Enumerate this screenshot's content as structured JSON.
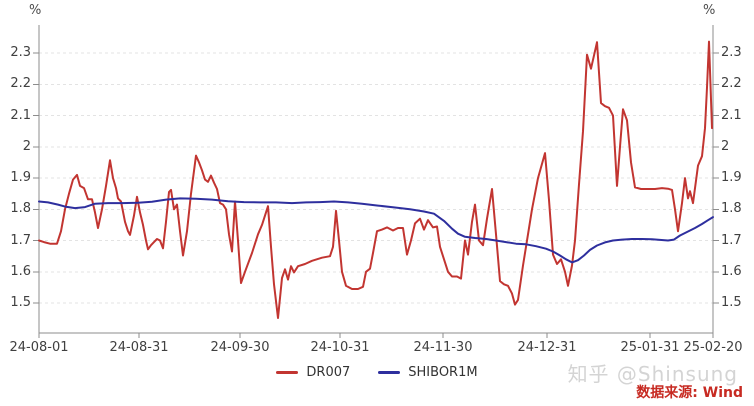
{
  "watermark": "知乎 @Shinsung",
  "source_note": "数据来源: Wind",
  "chart_data": {
    "type": "line",
    "title": "",
    "y_unit": "%",
    "grid": "horizontal dashed gridlines",
    "legend_position": "bottom-center",
    "y_tick_labels": [
      "2.3",
      "2.2",
      "2.1",
      "2",
      "1.9",
      "1.8",
      "1.7",
      "1.6",
      "1.5"
    ],
    "y_tick_values": [
      2.3,
      2.2,
      2.1,
      2.0,
      1.9,
      1.8,
      1.7,
      1.6,
      1.5
    ],
    "y_axis_range": [
      1.404,
      2.39
    ],
    "x_axis_type": "trading-day dates",
    "x_ticks": [
      {
        "label": "24-08-01",
        "f": 0.0
      },
      {
        "label": "24-08-31",
        "f": 0.1484
      },
      {
        "label": "24-09-30",
        "f": 0.2982
      },
      {
        "label": "24-10-31",
        "f": 0.4466
      },
      {
        "label": "24-11-30",
        "f": 0.5994
      },
      {
        "label": "24-12-31",
        "f": 0.7537
      },
      {
        "label": "25-01-31",
        "f": 0.9066
      },
      {
        "label": "25-02-20",
        "f": 1.0
      }
    ],
    "x_domain": [
      39,
      713
    ],
    "series": [
      {
        "name": "DR007",
        "color": "#c23531",
        "points": [
          [
            39,
            1.7
          ],
          [
            44,
            1.695
          ],
          [
            50,
            1.69
          ],
          [
            57,
            1.69
          ],
          [
            61,
            1.73
          ],
          [
            65,
            1.8
          ],
          [
            69,
            1.85
          ],
          [
            73,
            1.895
          ],
          [
            77,
            1.91
          ],
          [
            80,
            1.875
          ],
          [
            84,
            1.868
          ],
          [
            88,
            1.832
          ],
          [
            92,
            1.832
          ],
          [
            95,
            1.79
          ],
          [
            98,
            1.74
          ],
          [
            102,
            1.8
          ],
          [
            106,
            1.875
          ],
          [
            110,
            1.957
          ],
          [
            113,
            1.9
          ],
          [
            116,
            1.868
          ],
          [
            118,
            1.835
          ],
          [
            121,
            1.825
          ],
          [
            125,
            1.76
          ],
          [
            128,
            1.73
          ],
          [
            130,
            1.718
          ],
          [
            134,
            1.78
          ],
          [
            137,
            1.84
          ],
          [
            140,
            1.79
          ],
          [
            143,
            1.75
          ],
          [
            146,
            1.7
          ],
          [
            148,
            1.672
          ],
          [
            151,
            1.685
          ],
          [
            154,
            1.695
          ],
          [
            157,
            1.705
          ],
          [
            160,
            1.7
          ],
          [
            163,
            1.675
          ],
          [
            166,
            1.76
          ],
          [
            169,
            1.855
          ],
          [
            171,
            1.862
          ],
          [
            174,
            1.8
          ],
          [
            177,
            1.815
          ],
          [
            180,
            1.73
          ],
          [
            183,
            1.652
          ],
          [
            187,
            1.73
          ],
          [
            191,
            1.85
          ],
          [
            196,
            1.972
          ],
          [
            199,
            1.95
          ],
          [
            202,
            1.925
          ],
          [
            205,
            1.895
          ],
          [
            208,
            1.888
          ],
          [
            211,
            1.908
          ],
          [
            214,
            1.885
          ],
          [
            217,
            1.865
          ],
          [
            220,
            1.82
          ],
          [
            223,
            1.815
          ],
          [
            226,
            1.8
          ],
          [
            229,
            1.72
          ],
          [
            232,
            1.665
          ],
          [
            235,
            1.825
          ],
          [
            238,
            1.7
          ],
          [
            241,
            1.564
          ],
          [
            245,
            1.6
          ],
          [
            252,
            1.66
          ],
          [
            258,
            1.72
          ],
          [
            262,
            1.75
          ],
          [
            266,
            1.79
          ],
          [
            268,
            1.81
          ],
          [
            271,
            1.68
          ],
          [
            274,
            1.56
          ],
          [
            278,
            1.452
          ],
          [
            282,
            1.58
          ],
          [
            285,
            1.608
          ],
          [
            288,
            1.575
          ],
          [
            291,
            1.618
          ],
          [
            294,
            1.598
          ],
          [
            298,
            1.618
          ],
          [
            305,
            1.625
          ],
          [
            312,
            1.635
          ],
          [
            322,
            1.645
          ],
          [
            330,
            1.65
          ],
          [
            333,
            1.68
          ],
          [
            336,
            1.795
          ],
          [
            339,
            1.7
          ],
          [
            342,
            1.6
          ],
          [
            346,
            1.555
          ],
          [
            352,
            1.545
          ],
          [
            358,
            1.545
          ],
          [
            363,
            1.552
          ],
          [
            366,
            1.6
          ],
          [
            370,
            1.61
          ],
          [
            373,
            1.66
          ],
          [
            377,
            1.73
          ],
          [
            382,
            1.735
          ],
          [
            387,
            1.742
          ],
          [
            393,
            1.732
          ],
          [
            398,
            1.74
          ],
          [
            403,
            1.74
          ],
          [
            407,
            1.655
          ],
          [
            411,
            1.7
          ],
          [
            415,
            1.755
          ],
          [
            420,
            1.77
          ],
          [
            424,
            1.735
          ],
          [
            428,
            1.765
          ],
          [
            433,
            1.742
          ],
          [
            437,
            1.745
          ],
          [
            440,
            1.68
          ],
          [
            444,
            1.64
          ],
          [
            448,
            1.6
          ],
          [
            452,
            1.585
          ],
          [
            457,
            1.585
          ],
          [
            461,
            1.578
          ],
          [
            465,
            1.7
          ],
          [
            468,
            1.655
          ],
          [
            472,
            1.76
          ],
          [
            475,
            1.815
          ],
          [
            479,
            1.7
          ],
          [
            483,
            1.685
          ],
          [
            487,
            1.77
          ],
          [
            492,
            1.865
          ],
          [
            496,
            1.72
          ],
          [
            500,
            1.57
          ],
          [
            504,
            1.56
          ],
          [
            508,
            1.555
          ],
          [
            512,
            1.53
          ],
          [
            515,
            1.495
          ],
          [
            518,
            1.51
          ],
          [
            523,
            1.62
          ],
          [
            528,
            1.72
          ],
          [
            532,
            1.8
          ],
          [
            538,
            1.9
          ],
          [
            545,
            1.98
          ],
          [
            549,
            1.83
          ],
          [
            553,
            1.655
          ],
          [
            557,
            1.625
          ],
          [
            561,
            1.64
          ],
          [
            565,
            1.6
          ],
          [
            568,
            1.555
          ],
          [
            572,
            1.62
          ],
          [
            575,
            1.7
          ],
          [
            579,
            1.88
          ],
          [
            583,
            2.05
          ],
          [
            587,
            2.295
          ],
          [
            591,
            2.25
          ],
          [
            597,
            2.335
          ],
          [
            601,
            2.14
          ],
          [
            605,
            2.13
          ],
          [
            609,
            2.125
          ],
          [
            613,
            2.1
          ],
          [
            617,
            1.875
          ],
          [
            620,
            2.0
          ],
          [
            623,
            2.12
          ],
          [
            627,
            2.085
          ],
          [
            631,
            1.95
          ],
          [
            635,
            1.87
          ],
          [
            641,
            1.865
          ],
          [
            648,
            1.865
          ],
          [
            655,
            1.865
          ],
          [
            662,
            1.868
          ],
          [
            668,
            1.866
          ],
          [
            672,
            1.862
          ],
          [
            675,
            1.8
          ],
          [
            678,
            1.73
          ],
          [
            682,
            1.82
          ],
          [
            685,
            1.9
          ],
          [
            688,
            1.835
          ],
          [
            690,
            1.858
          ],
          [
            693,
            1.82
          ],
          [
            698,
            1.94
          ],
          [
            702,
            1.97
          ],
          [
            705,
            2.06
          ],
          [
            707,
            2.19
          ],
          [
            709,
            2.337
          ],
          [
            712,
            2.06
          ]
        ]
      },
      {
        "name": "SHIBOR1M",
        "color": "#2e2f9e",
        "points": [
          [
            39,
            1.825
          ],
          [
            48,
            1.822
          ],
          [
            58,
            1.815
          ],
          [
            66,
            1.808
          ],
          [
            75,
            1.804
          ],
          [
            85,
            1.807
          ],
          [
            95,
            1.818
          ],
          [
            108,
            1.82
          ],
          [
            122,
            1.82
          ],
          [
            138,
            1.821
          ],
          [
            152,
            1.824
          ],
          [
            166,
            1.831
          ],
          [
            180,
            1.835
          ],
          [
            196,
            1.834
          ],
          [
            212,
            1.831
          ],
          [
            228,
            1.826
          ],
          [
            244,
            1.823
          ],
          [
            260,
            1.822
          ],
          [
            276,
            1.822
          ],
          [
            292,
            1.82
          ],
          [
            306,
            1.822
          ],
          [
            320,
            1.823
          ],
          [
            334,
            1.825
          ],
          [
            348,
            1.822
          ],
          [
            362,
            1.818
          ],
          [
            378,
            1.812
          ],
          [
            394,
            1.806
          ],
          [
            410,
            1.8
          ],
          [
            424,
            1.793
          ],
          [
            434,
            1.786
          ],
          [
            444,
            1.763
          ],
          [
            452,
            1.738
          ],
          [
            458,
            1.722
          ],
          [
            465,
            1.712
          ],
          [
            475,
            1.708
          ],
          [
            486,
            1.705
          ],
          [
            496,
            1.7
          ],
          [
            506,
            1.695
          ],
          [
            516,
            1.69
          ],
          [
            526,
            1.688
          ],
          [
            536,
            1.682
          ],
          [
            546,
            1.674
          ],
          [
            553,
            1.665
          ],
          [
            560,
            1.652
          ],
          [
            566,
            1.64
          ],
          [
            572,
            1.63
          ],
          [
            578,
            1.637
          ],
          [
            584,
            1.652
          ],
          [
            590,
            1.67
          ],
          [
            597,
            1.684
          ],
          [
            605,
            1.694
          ],
          [
            613,
            1.7
          ],
          [
            622,
            1.703
          ],
          [
            632,
            1.705
          ],
          [
            642,
            1.705
          ],
          [
            652,
            1.704
          ],
          [
            660,
            1.702
          ],
          [
            668,
            1.7
          ],
          [
            674,
            1.703
          ],
          [
            680,
            1.716
          ],
          [
            688,
            1.729
          ],
          [
            695,
            1.74
          ],
          [
            702,
            1.753
          ],
          [
            708,
            1.765
          ],
          [
            713,
            1.775
          ]
        ]
      }
    ]
  }
}
